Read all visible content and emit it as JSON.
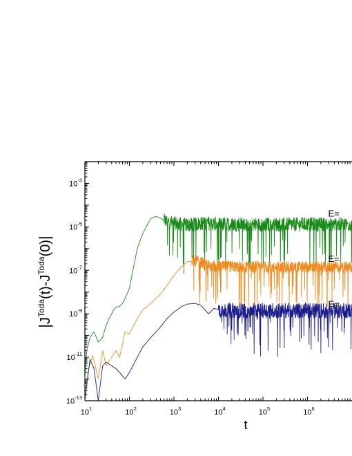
{
  "chart_data": {
    "type": "line",
    "title": "",
    "xlabel": "t",
    "ylabel": "|J^Toda(t)-J^Toda(0)|",
    "ylabel_parts": {
      "bar_left": "|",
      "j1": "J",
      "sup1": "Toda",
      "mid": "(t)-",
      "j2": "J",
      "sup2": "Toda",
      "end": "(0)",
      "bar_right": "|"
    },
    "x_scale": "log",
    "y_scale": "log",
    "xlim": [
      10,
      10000000
    ],
    "ylim": [
      1e-13,
      0.01
    ],
    "x_ticks": [
      {
        "value": 10,
        "base": "10",
        "exp": "1"
      },
      {
        "value": 100,
        "base": "10",
        "exp": "2"
      },
      {
        "value": 1000,
        "base": "10",
        "exp": "3"
      },
      {
        "value": 10000,
        "base": "10",
        "exp": "4"
      },
      {
        "value": 100000,
        "base": "10",
        "exp": "5"
      },
      {
        "value": 1000000,
        "base": "10",
        "exp": "6"
      }
    ],
    "y_ticks": [
      {
        "value": 1e-13,
        "base": "10",
        "exp": "-13"
      },
      {
        "value": 1e-11,
        "base": "10",
        "exp": "-11"
      },
      {
        "value": 1e-09,
        "base": "10",
        "exp": "-9"
      },
      {
        "value": 1e-07,
        "base": "10",
        "exp": "-7"
      },
      {
        "value": 1e-05,
        "base": "10",
        "exp": "-5"
      },
      {
        "value": 0.001,
        "base": "10",
        "exp": "-3"
      }
    ],
    "grid": false,
    "series": [
      {
        "label": "E=",
        "color": "#1a8a1a",
        "label_at": [
          1000000,
          3e-05
        ],
        "x": [
          10,
          11,
          13,
          16,
          20,
          25,
          30,
          35,
          40,
          45,
          50,
          60,
          70,
          80,
          100,
          120,
          150,
          200,
          250,
          300,
          350,
          400,
          500,
          600,
          800,
          1000,
          2000,
          5000,
          10000,
          100000,
          1000000,
          10000000
        ],
        "y": [
          1e-12,
          2e-11,
          8e-11,
          1.5e-10,
          5e-11,
          8e-11,
          3e-10,
          6e-10,
          1e-09,
          1.6e-09,
          2e-09,
          2.2e-09,
          3e-09,
          5e-09,
          1.5e-08,
          1e-07,
          1e-06,
          5e-06,
          1.2e-05,
          2.4e-05,
          2.8e-05,
          3e-05,
          2.5e-05,
          2e-05,
          1.6e-05,
          1.5e-05,
          1.2e-05,
          1.5e-05,
          1.3e-05,
          1.3e-05,
          1.3e-05,
          1.3e-05
        ],
        "noise_from": 600,
        "noise_amp": 0.55
      },
      {
        "label": "E=",
        "color": "#f08a1e",
        "label_at": [
          1000000,
          2.5e-07
        ],
        "x": [
          10,
          12,
          15,
          20,
          25,
          30,
          40,
          50,
          60,
          70,
          80,
          100,
          150,
          200,
          300,
          500,
          700,
          1000,
          1500,
          2000,
          3000,
          5000,
          7000,
          10000,
          100000,
          1000000,
          10000000
        ],
        "y": [
          1e-13,
          3e-12,
          1.2e-11,
          1e-12,
          2e-11,
          4e-12,
          1e-11,
          2e-11,
          1e-11,
          4e-11,
          1.5e-10,
          1.2e-10,
          6e-10,
          1.5e-09,
          3e-09,
          8e-09,
          2e-08,
          6e-08,
          1.5e-07,
          2.5e-07,
          2.8e-07,
          2e-07,
          1.5e-07,
          1.5e-07,
          1.4e-07,
          1.4e-07,
          1.4e-07
        ],
        "noise_from": 2500,
        "noise_amp": 0.45
      },
      {
        "label": "E=",
        "color": "#1c1c8c",
        "label_at": [
          1000000,
          2e-09
        ],
        "x": [
          10,
          13,
          16,
          20,
          25,
          30,
          40,
          50,
          60,
          80,
          100,
          150,
          200,
          300,
          500,
          700,
          1000,
          1500,
          2000,
          3000,
          4000,
          5000,
          6000,
          8000,
          10000,
          20000,
          100000,
          1000000,
          10000000
        ],
        "y": [
          1e-13,
          8e-12,
          3e-12,
          1e-13,
          4e-12,
          6e-12,
          4e-12,
          3e-12,
          2e-12,
          1e-12,
          2e-12,
          1e-11,
          3e-11,
          8e-11,
          2.5e-10,
          6e-10,
          1.2e-09,
          2.2e-09,
          2.8e-09,
          3e-09,
          2.5e-09,
          1.5e-09,
          1e-09,
          1.8e-09,
          1.5e-09,
          1.4e-09,
          1.4e-09,
          1.4e-09,
          1.4e-09
        ],
        "noise_from": 10000,
        "noise_amp": 0.6
      }
    ]
  }
}
